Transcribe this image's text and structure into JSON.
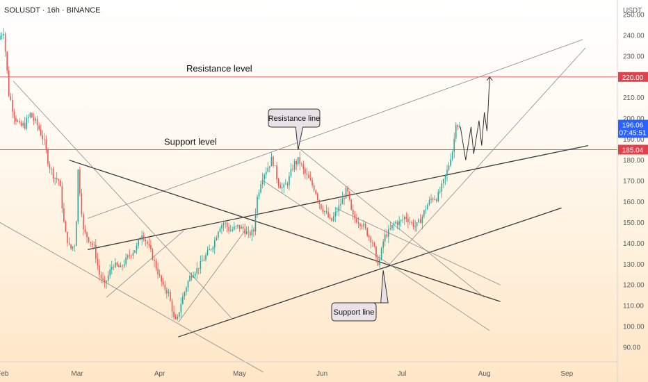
{
  "header": {
    "title": "SOLUSDT · 16h · BINANCE"
  },
  "axis": {
    "currency": "USDT"
  },
  "colors": {
    "up": "#26a69a",
    "down": "#ef5350",
    "level": "#e0424d",
    "trend": "#3a3a3a",
    "channel": "#8a8a8a",
    "price_badge": "#2962ff"
  },
  "chart_data": {
    "type": "candlestick",
    "title": "SOLUSDT · 16h · BINANCE",
    "ylabel": "USDT",
    "ylim": [
      83,
      257
    ],
    "y_ticks": [
      90,
      100,
      110,
      120,
      130,
      140,
      150,
      160,
      170,
      180,
      190,
      200,
      210,
      220,
      230,
      240,
      250
    ],
    "y_tick_labels": [
      "90.00",
      "100.00",
      "110.00",
      "120.00",
      "130.00",
      "140.00",
      "150.00",
      "160.00",
      "170.00",
      "180.00",
      "190.00",
      "200.00",
      "210.00",
      "220.00",
      "230.00",
      "240.00",
      "250.00"
    ],
    "x_range": [
      "2025-01-31",
      "2025-09-20"
    ],
    "x_ticks": [
      {
        "date": "2025-02-01",
        "label": "Feb"
      },
      {
        "date": "2025-03-01",
        "label": "Mar"
      },
      {
        "date": "2025-04-01",
        "label": "Apr"
      },
      {
        "date": "2025-05-01",
        "label": "May"
      },
      {
        "date": "2025-06-01",
        "label": "Jun"
      },
      {
        "date": "2025-07-01",
        "label": "Jul"
      },
      {
        "date": "2025-08-01",
        "label": "Aug"
      },
      {
        "date": "2025-09-01",
        "label": "Sep"
      }
    ],
    "price_path": [
      [
        "2025-01-31",
        238
      ],
      [
        "2025-02-02",
        243
      ],
      [
        "2025-02-04",
        212
      ],
      [
        "2025-02-06",
        202
      ],
      [
        "2025-02-08",
        196
      ],
      [
        "2025-02-10",
        197
      ],
      [
        "2025-02-12",
        202
      ],
      [
        "2025-02-15",
        196
      ],
      [
        "2025-02-17",
        190
      ],
      [
        "2025-02-19",
        178
      ],
      [
        "2025-02-21",
        172
      ],
      [
        "2025-02-23",
        170
      ],
      [
        "2025-02-25",
        146
      ],
      [
        "2025-02-27",
        137
      ],
      [
        "2025-03-01",
        140
      ],
      [
        "2025-03-02",
        175
      ],
      [
        "2025-03-04",
        146
      ],
      [
        "2025-03-06",
        142
      ],
      [
        "2025-03-08",
        138
      ],
      [
        "2025-03-10",
        125
      ],
      [
        "2025-03-12",
        120
      ],
      [
        "2025-03-15",
        130
      ],
      [
        "2025-03-18",
        128
      ],
      [
        "2025-03-21",
        134
      ],
      [
        "2025-03-24",
        138
      ],
      [
        "2025-03-26",
        145
      ],
      [
        "2025-03-29",
        137
      ],
      [
        "2025-04-01",
        126
      ],
      [
        "2025-04-03",
        119
      ],
      [
        "2025-04-05",
        116
      ],
      [
        "2025-04-07",
        104
      ],
      [
        "2025-04-08",
        102
      ],
      [
        "2025-04-10",
        113
      ],
      [
        "2025-04-13",
        124
      ],
      [
        "2025-04-16",
        128
      ],
      [
        "2025-04-19",
        134
      ],
      [
        "2025-04-22",
        140
      ],
      [
        "2025-04-24",
        148
      ],
      [
        "2025-04-26",
        150
      ],
      [
        "2025-04-28",
        146
      ],
      [
        "2025-05-01",
        148
      ],
      [
        "2025-05-03",
        147
      ],
      [
        "2025-05-05",
        144
      ],
      [
        "2025-05-07",
        146
      ],
      [
        "2025-05-08",
        160
      ],
      [
        "2025-05-10",
        172
      ],
      [
        "2025-05-12",
        176
      ],
      [
        "2025-05-14",
        181
      ],
      [
        "2025-05-16",
        170
      ],
      [
        "2025-05-18",
        166
      ],
      [
        "2025-05-20",
        170
      ],
      [
        "2025-05-22",
        178
      ],
      [
        "2025-05-24",
        180
      ],
      [
        "2025-05-26",
        174
      ],
      [
        "2025-05-28",
        170
      ],
      [
        "2025-05-30",
        166
      ],
      [
        "2025-06-01",
        158
      ],
      [
        "2025-06-03",
        155
      ],
      [
        "2025-06-05",
        150
      ],
      [
        "2025-06-07",
        155
      ],
      [
        "2025-06-09",
        160
      ],
      [
        "2025-06-11",
        166
      ],
      [
        "2025-06-13",
        153
      ],
      [
        "2025-06-15",
        151
      ],
      [
        "2025-06-17",
        149
      ],
      [
        "2025-06-19",
        144
      ],
      [
        "2025-06-21",
        140
      ],
      [
        "2025-06-22",
        132
      ],
      [
        "2025-06-23",
        130
      ],
      [
        "2025-06-25",
        143
      ],
      [
        "2025-06-27",
        146
      ],
      [
        "2025-06-29",
        150
      ],
      [
        "2025-07-01",
        150
      ],
      [
        "2025-07-03",
        153
      ],
      [
        "2025-07-05",
        150
      ],
      [
        "2025-07-07",
        148
      ],
      [
        "2025-07-09",
        152
      ],
      [
        "2025-07-11",
        158
      ],
      [
        "2025-07-13",
        162
      ],
      [
        "2025-07-15",
        162
      ],
      [
        "2025-07-17",
        168
      ],
      [
        "2025-07-19",
        176
      ],
      [
        "2025-07-20",
        182
      ],
      [
        "2025-07-21",
        186
      ],
      [
        "2025-07-22",
        199
      ],
      [
        "2025-07-23",
        196
      ]
    ],
    "current_price": "196.06",
    "current_price_countdown": "07:45:51",
    "levels": [
      {
        "name": "Resistance level",
        "price": 220,
        "axis_label": "220.00"
      },
      {
        "name": "Support level",
        "price": 185.04,
        "axis_label": "185.04"
      }
    ],
    "callouts": [
      {
        "text": "Resistance line",
        "pointer_date": "2025-05-23",
        "pointer_price": 185
      },
      {
        "text": "Support line",
        "pointer_date": "2025-06-24",
        "pointer_price": 127
      }
    ],
    "projection": [
      [
        "2025-07-23",
        196
      ],
      [
        "2025-07-25",
        180
      ],
      [
        "2025-07-27",
        196
      ],
      [
        "2025-07-28",
        183
      ],
      [
        "2025-07-30",
        199
      ],
      [
        "2025-07-31",
        187
      ],
      [
        "2025-08-01",
        203
      ],
      [
        "2025-08-02",
        194
      ],
      [
        "2025-08-03",
        220
      ]
    ],
    "trendlines": [
      {
        "role": "upper-channel",
        "from": [
          "2025-03-05",
          152
        ],
        "to": [
          "2025-09-07",
          238
        ]
      },
      {
        "role": "right-wedge",
        "from": [
          "2025-06-25",
          128
        ],
        "to": [
          "2025-09-08",
          234
        ]
      },
      {
        "role": "middle-rising",
        "from": [
          "2025-03-05",
          137
        ],
        "to": [
          "2025-09-09",
          187
        ]
      },
      {
        "role": "lower-rising",
        "from": [
          "2025-04-08",
          95
        ],
        "to": [
          "2025-08-30",
          157
        ]
      },
      {
        "role": "falling-trend",
        "from": [
          "2025-02-26",
          180
        ],
        "to": [
          "2025-08-07",
          112
        ]
      },
      {
        "role": "steep-falling",
        "from": [
          "2025-02-05",
          218
        ],
        "to": [
          "2025-04-28",
          104
        ]
      },
      {
        "role": "lower-falling",
        "from": [
          "2025-01-31",
          150
        ],
        "to": [
          "2025-05-10",
          78
        ]
      },
      {
        "role": "jun-channel",
        "from": [
          "2025-05-23",
          186
        ],
        "to": [
          "2025-08-01",
          114
        ]
      },
      {
        "role": "jun-channel-lower",
        "from": [
          "2025-06-06",
          157
        ],
        "to": [
          "2025-08-07",
          120
        ]
      },
      {
        "role": "short-diag",
        "from": [
          "2025-05-10",
          170
        ],
        "to": [
          "2025-08-03",
          98
        ]
      },
      {
        "role": "mar-rise",
        "from": [
          "2025-03-12",
          114
        ],
        "to": [
          "2025-04-10",
          146
        ]
      },
      {
        "role": "apr-rise",
        "from": [
          "2025-04-08",
          102
        ],
        "to": [
          "2025-05-03",
          146
        ]
      }
    ]
  },
  "annotations": {
    "resistance_level": "Resistance level",
    "support_level": "Support level",
    "resistance_line": "Resistance line",
    "support_line": "Support line"
  }
}
